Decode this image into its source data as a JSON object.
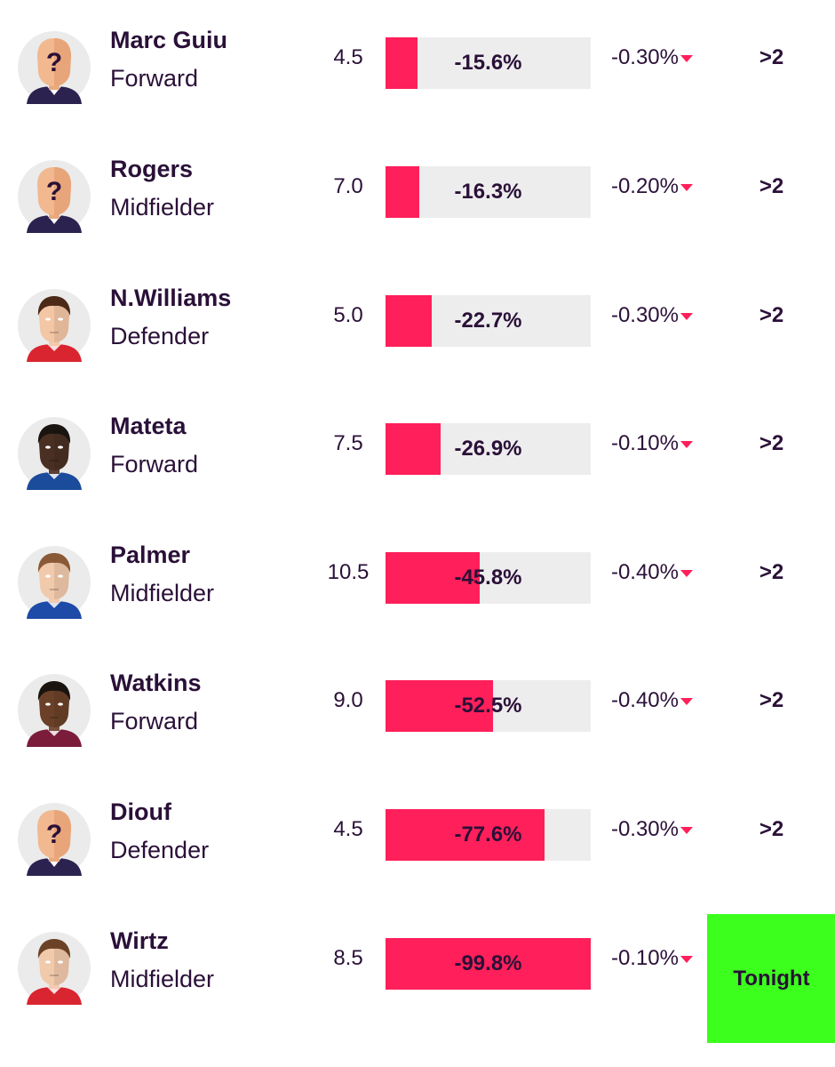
{
  "players": [
    {
      "name": "Marc Guiu",
      "position": "Forward",
      "price": "4.5",
      "progress": "-15.6%",
      "progress_fraction": 0.156,
      "change": "-0.30%",
      "fixture": ">2",
      "fixture_highlight": false,
      "avatar": "unknown-player-icon",
      "shirt_color": "#2b2250"
    },
    {
      "name": "Rogers",
      "position": "Midfielder",
      "price": "7.0",
      "progress": "-16.3%",
      "progress_fraction": 0.163,
      "change": "-0.20%",
      "fixture": ">2",
      "fixture_highlight": false,
      "avatar": "unknown-player-icon",
      "shirt_color": "#2b2250"
    },
    {
      "name": "N.Williams",
      "position": "Defender",
      "price": "5.0",
      "progress": "-22.7%",
      "progress_fraction": 0.227,
      "change": "-0.30%",
      "fixture": ">2",
      "fixture_highlight": false,
      "avatar": "player-portrait",
      "shirt_color": "#d92530",
      "skin_color": "#f3c6a5",
      "hair_color": "#4b2a17"
    },
    {
      "name": "Mateta",
      "position": "Forward",
      "price": "7.5",
      "progress": "-26.9%",
      "progress_fraction": 0.269,
      "change": "-0.10%",
      "fixture": ">2",
      "fixture_highlight": false,
      "avatar": "player-portrait",
      "shirt_color": "#1b4b9b",
      "skin_color": "#4a2f23",
      "hair_color": "#1a1410"
    },
    {
      "name": "Palmer",
      "position": "Midfielder",
      "price": "10.5",
      "progress": "-45.8%",
      "progress_fraction": 0.458,
      "change": "-0.40%",
      "fixture": ">2",
      "fixture_highlight": false,
      "avatar": "player-portrait",
      "shirt_color": "#1e4aa8",
      "skin_color": "#f1c9ab",
      "hair_color": "#8a5a36"
    },
    {
      "name": "Watkins",
      "position": "Forward",
      "price": "9.0",
      "progress": "-52.5%",
      "progress_fraction": 0.525,
      "change": "-0.40%",
      "fixture": ">2",
      "fixture_highlight": false,
      "avatar": "player-portrait",
      "shirt_color": "#7a1c3a",
      "skin_color": "#6a4128",
      "hair_color": "#1a1410"
    },
    {
      "name": "Diouf",
      "position": "Defender",
      "price": "4.5",
      "progress": "-77.6%",
      "progress_fraction": 0.776,
      "change": "-0.30%",
      "fixture": ">2",
      "fixture_highlight": false,
      "avatar": "unknown-player-icon",
      "shirt_color": "#2b2250"
    },
    {
      "name": "Wirtz",
      "position": "Midfielder",
      "price": "8.5",
      "progress": "-99.8%",
      "progress_fraction": 0.998,
      "change": "-0.10%",
      "fixture": "Tonight",
      "fixture_highlight": true,
      "avatar": "player-portrait",
      "shirt_color": "#d92530",
      "skin_color": "#f1c9ab",
      "hair_color": "#6b4226"
    }
  ],
  "colors": {
    "accent": "#ff1f5a",
    "track": "#ededed",
    "tonight": "#3cff1e",
    "text": "#2a1038"
  },
  "icons": {
    "change_arrow": "down-arrow-icon"
  }
}
